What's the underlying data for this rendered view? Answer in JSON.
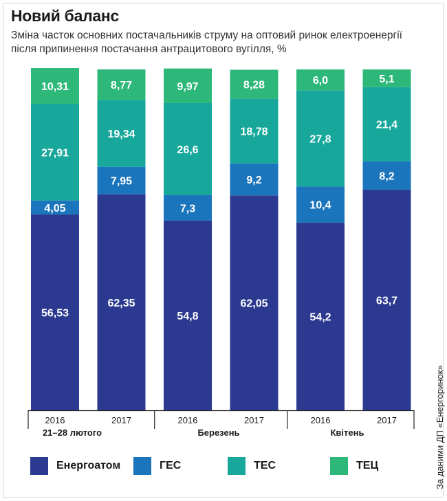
{
  "title": "Новий баланс",
  "subtitle": "Зміна часток основних постачальників струму на оптовий ринок електроенергії після припинення постачання антрацитового вугілля, %",
  "source": "За даними ДП «Енергоринок»",
  "colors": {
    "energoatom": "#2b3990",
    "ges": "#1b75bc",
    "tes": "#17a89b",
    "tec": "#2db87a"
  },
  "chart_data": {
    "type": "bar",
    "stacked": true,
    "ylim": [
      0,
      100
    ],
    "categories": [
      "2016",
      "2017",
      "2016",
      "2017",
      "2016",
      "2017"
    ],
    "groups": [
      {
        "label": "21–28 лютого",
        "categories": [
          "2016",
          "2017"
        ]
      },
      {
        "label": "Березень",
        "categories": [
          "2016",
          "2017"
        ]
      },
      {
        "label": "Квітень",
        "categories": [
          "2016",
          "2017"
        ]
      }
    ],
    "series": [
      {
        "name": "Енергоатом",
        "color_key": "energoatom",
        "values": [
          56.53,
          62.35,
          54.8,
          62.05,
          54.2,
          63.7
        ],
        "labels": [
          "56,53",
          "62,35",
          "54,8",
          "62,05",
          "54,2",
          "63,7"
        ]
      },
      {
        "name": "ГЕС",
        "color_key": "ges",
        "values": [
          4.05,
          7.95,
          7.3,
          9.2,
          10.4,
          8.2
        ],
        "labels": [
          "4,05",
          "7,95",
          "7,3",
          "9,2",
          "10,4",
          "8,2"
        ]
      },
      {
        "name": "ТЕС",
        "color_key": "tes",
        "values": [
          27.91,
          19.34,
          26.6,
          18.78,
          27.8,
          21.4
        ],
        "labels": [
          "27,91",
          "19,34",
          "26,6",
          "18,78",
          "27,8",
          "21,4"
        ]
      },
      {
        "name": "ТЕЦ",
        "color_key": "tec",
        "values": [
          10.31,
          8.77,
          9.97,
          8.28,
          6.0,
          5.1
        ],
        "labels": [
          "10,31",
          "8,77",
          "9,97",
          "8,28",
          "6,0",
          "5,1"
        ]
      }
    ],
    "legend_position": "bottom"
  }
}
